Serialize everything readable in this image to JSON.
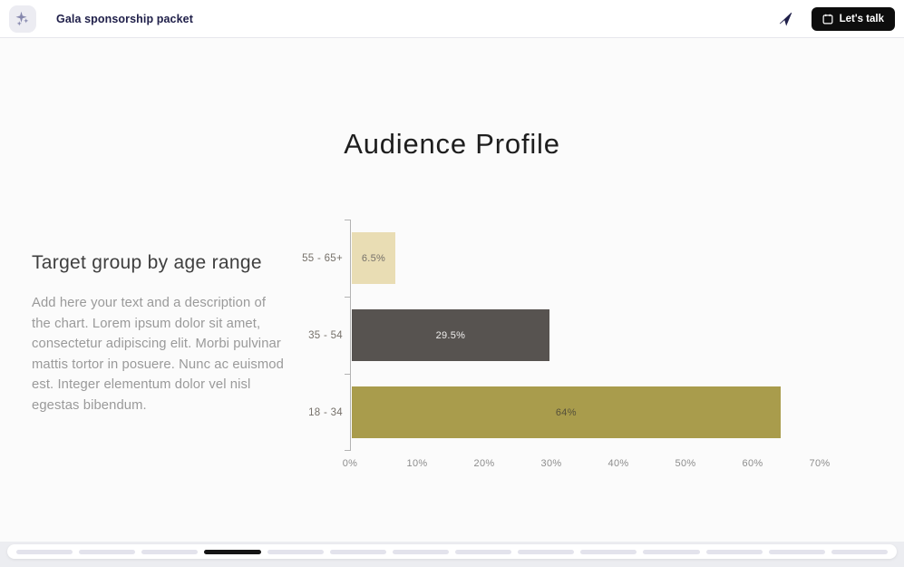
{
  "header": {
    "document_title": "Gala sponsorship packet",
    "lets_talk_label": "Let's talk"
  },
  "slide": {
    "title": "Audience Profile",
    "left_block": {
      "heading": "Target group by age range",
      "body": "Add here your text and a description of the chart. Lorem ipsum dolor sit amet, consectetur adipiscing elit. Morbi pulvinar mattis tortor in posuere. Nunc ac euismod est. Integer elementum dolor vel nisl egestas bibendum."
    }
  },
  "chart_data": {
    "type": "bar",
    "orientation": "horizontal",
    "title": "Target group by age range",
    "categories": [
      "55 - 65+",
      "35 - 54",
      "18 - 34"
    ],
    "values": [
      6.5,
      29.5,
      64
    ],
    "value_labels": [
      "6.5%",
      "29.5%",
      "64%"
    ],
    "bar_colors": [
      "#e9ddb4",
      "#575350",
      "#a99c4c"
    ],
    "value_label_colors": [
      "#76716a",
      "#efeeed",
      "#55503a"
    ],
    "xlim": [
      0,
      70
    ],
    "x_tick_labels": [
      "0%",
      "10%",
      "20%",
      "30%",
      "40%",
      "50%",
      "60%",
      "70%"
    ],
    "grid": false,
    "legend": false,
    "axis_color": "#b3b3b3"
  },
  "footer": {
    "slide_count": 14,
    "active_slide_index": 3
  },
  "colors": {
    "accent_black": "#0d0d0d",
    "brand_navy": "#20204a",
    "logo_bg": "#ececf2",
    "logo_glyph": "#8587ad",
    "slide_bg": "#fbfbfb",
    "footer_band": "#ecedf1",
    "segment_inactive": "#e3e3ec",
    "segment_active": "#151515"
  }
}
